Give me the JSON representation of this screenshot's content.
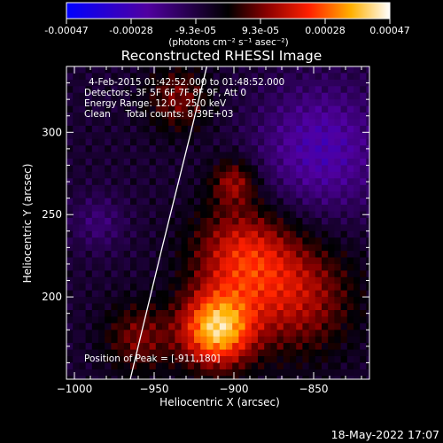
{
  "colorbar": {
    "ticks": [
      "-0.00047",
      "-0.00028",
      "-9.3e-05",
      "9.3e-05",
      "0.00028",
      "0.00047"
    ],
    "units": "(photons cm⁻² s⁻¹ asec⁻²)",
    "colormap": [
      "#0000ff",
      "#5000a0",
      "#000000",
      "#8a0000",
      "#ff2000",
      "#ffb000",
      "#ffffff"
    ]
  },
  "plot": {
    "title": "Reconstructed RHESSI Image",
    "annotations": [
      "4-Feb-2015 01:42:52.000 to 01:48:52.000",
      "Detectors: 3F 5F 6F 7F 8F 9F, Att 0",
      "Energy Range: 12.0 - 25.0 keV",
      "Clean     Total counts: 8.39E+03"
    ],
    "peak_label": "Position of Peak = [-911,180]"
  },
  "footer": {
    "date": "18-May-2022 17:07"
  },
  "chart_data": {
    "type": "heatmap",
    "title": "Reconstructed RHESSI Image",
    "xlabel": "Heliocentric X (arcsec)",
    "ylabel": "Heliocentric Y (arcsec)",
    "xlim": [
      -1005,
      -815
    ],
    "ylim": [
      150,
      340
    ],
    "xticks": [
      -1000,
      -950,
      -900,
      -850
    ],
    "yticks": [
      200,
      250,
      300
    ],
    "colorbar_range": [
      -0.00047,
      0.00047
    ],
    "peak": [
      -911,
      180
    ],
    "limb": [
      [
        -965,
        150
      ],
      [
        -955,
        190
      ],
      [
        -945,
        230
      ],
      [
        -936,
        265
      ],
      [
        -927,
        300
      ],
      [
        -920,
        328
      ],
      [
        -917,
        340
      ]
    ]
  }
}
